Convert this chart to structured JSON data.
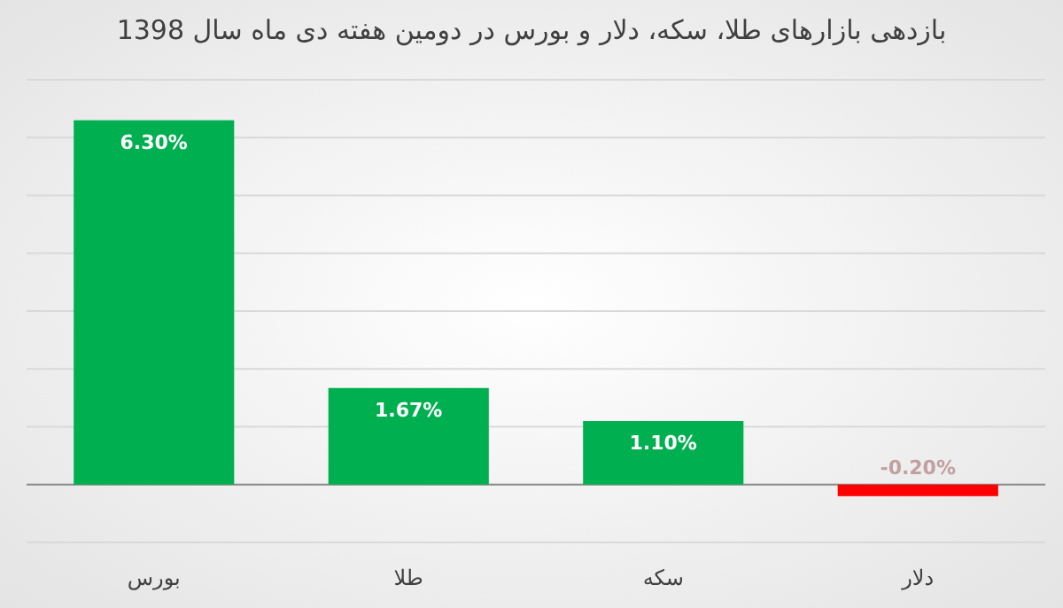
{
  "chart_data": {
    "type": "bar",
    "title": "بازدهی بازارهای طلا، سکه، دلار و بورس در دومین هفته دی ماه سال 1398",
    "categories": [
      "بورس",
      "طلا",
      "سکه",
      "دلار"
    ],
    "values": [
      6.3,
      1.67,
      1.1,
      -0.2
    ],
    "colors": [
      "#00b050",
      "#00b050",
      "#00b050",
      "#ff0000"
    ],
    "value_labels": [
      "6.30%",
      "1.67%",
      "1.10%",
      "-0.20%"
    ],
    "ylim": [
      -1,
      7
    ],
    "yticks": [
      {
        "value": -1,
        "label": null
      },
      {
        "value": 0,
        "label": null
      },
      {
        "value": 1,
        "label": null
      },
      {
        "value": 2,
        "label": null
      },
      {
        "value": 3,
        "label": null
      },
      {
        "value": 4,
        "label": null
      },
      {
        "value": 5,
        "label": null
      },
      {
        "value": 6,
        "label": null
      },
      {
        "value": 7,
        "label": null
      }
    ],
    "grid": "y",
    "tick_labels": "x"
  }
}
